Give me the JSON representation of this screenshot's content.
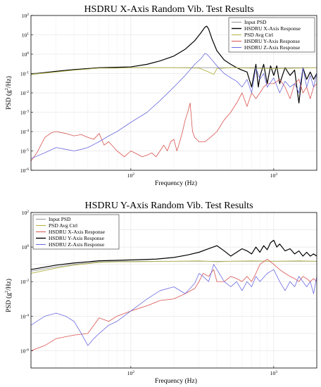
{
  "chart_data": [
    {
      "type": "line",
      "title": "HSDRU X-Axis Random Vib. Test Results",
      "xlabel": "Frequency (Hz)",
      "ylabel_prefix": "PSD (g",
      "ylabel_sup": "2",
      "ylabel_suffix": "/Hz)",
      "xscale": "log",
      "yscale": "log",
      "xlim": [
        20,
        2000
      ],
      "ylim": [
        1e-06,
        100
      ],
      "grid": true,
      "legend_position": "top-right",
      "x_ticks": [
        {
          "base": "10",
          "exp": "2",
          "value": 100
        },
        {
          "base": "10",
          "exp": "3",
          "value": 1000
        }
      ],
      "y_ticks": [
        {
          "base": "10",
          "exp": "2",
          "value": 100
        },
        {
          "base": "10",
          "exp": "1",
          "value": 10
        },
        {
          "base": "10",
          "exp": "0",
          "value": 1
        },
        {
          "base": "10",
          "exp": "-1",
          "value": 0.1
        },
        {
          "base": "10",
          "exp": "-2",
          "value": 0.01
        },
        {
          "base": "10",
          "exp": "-3",
          "value": 0.001
        },
        {
          "base": "10",
          "exp": "-4",
          "value": 0.0001
        },
        {
          "base": "10",
          "exp": "-5",
          "value": 1e-05
        },
        {
          "base": "10",
          "exp": "-6",
          "value": 1e-06
        }
      ],
      "series": [
        {
          "name": "Input PSD",
          "color": "#9a9a9a",
          "width": 0.9,
          "x": [
            20,
            30,
            40,
            50,
            60,
            80,
            100,
            200,
            300,
            400,
            500,
            700,
            1000,
            1500,
            2000
          ],
          "y": [
            0.1,
            0.13,
            0.16,
            0.18,
            0.2,
            0.2,
            0.2,
            0.2,
            0.2,
            0.2,
            0.2,
            0.2,
            0.2,
            0.2,
            0.2
          ]
        },
        {
          "name": "HSDRU X-Axis Response",
          "color": "#000000",
          "width": 1.2,
          "x": [
            20,
            30,
            40,
            50,
            60,
            80,
            100,
            130,
            160,
            200,
            240,
            280,
            310,
            330,
            340,
            350,
            370,
            400,
            450,
            500,
            550,
            600,
            650,
            700,
            720,
            750,
            780,
            800,
            850,
            900,
            950,
            1000,
            1050,
            1100,
            1200,
            1300,
            1400,
            1500,
            1600,
            1700,
            1800,
            1900,
            2000
          ],
          "y": [
            0.09,
            0.13,
            0.16,
            0.18,
            0.2,
            0.21,
            0.22,
            0.3,
            0.45,
            0.8,
            1.8,
            5,
            13,
            25,
            28,
            20,
            6,
            1.5,
            0.5,
            0.3,
            0.2,
            0.15,
            0.12,
            0.02,
            0.06,
            0.3,
            0.02,
            0.07,
            0.3,
            0.03,
            0.25,
            0.08,
            0.25,
            0.03,
            0.2,
            0.08,
            0.15,
            0.003,
            0.2,
            0.05,
            0.12,
            0.05,
            0.1
          ]
        },
        {
          "name": "PSD Avg Ctrl",
          "color": "#b5b54a",
          "width": 0.9,
          "x": [
            20,
            30,
            40,
            50,
            60,
            80,
            100,
            150,
            200,
            300,
            350,
            380,
            400,
            500,
            700,
            1000,
            1500,
            2000
          ],
          "y": [
            0.09,
            0.12,
            0.15,
            0.17,
            0.19,
            0.19,
            0.2,
            0.2,
            0.2,
            0.19,
            0.12,
            0.09,
            0.18,
            0.2,
            0.19,
            0.18,
            0.19,
            0.2
          ]
        },
        {
          "name": "HSDRU Y-Axis Response",
          "color": "#d9534f",
          "width": 0.8,
          "x": [
            20,
            22,
            25,
            28,
            30,
            35,
            40,
            45,
            50,
            55,
            60,
            65,
            70,
            80,
            90,
            100,
            110,
            120,
            130,
            140,
            150,
            160,
            170,
            180,
            190,
            200,
            210,
            220,
            230,
            240,
            250,
            260,
            270,
            280,
            300,
            330,
            360,
            400,
            450,
            500,
            550,
            600,
            650,
            700,
            750,
            800,
            850,
            900,
            1000,
            1100,
            1200,
            1300,
            1400,
            1500,
            1600,
            1700,
            1800,
            1900,
            2000
          ],
          "y": [
            3e-06,
            8e-06,
            5e-05,
            9e-05,
            0.0001,
            8e-05,
            6e-05,
            7e-05,
            5e-05,
            4e-05,
            8e-05,
            2e-05,
            3e-05,
            1e-05,
            5e-06,
            1e-05,
            7e-06,
            5e-06,
            6e-06,
            8e-06,
            5e-06,
            1e-05,
            2e-05,
            1e-05,
            3e-05,
            4e-05,
            1e-05,
            3e-05,
            0.0001,
            0.0004,
            0.001,
            0.003,
            0.0001,
            5e-05,
            3e-05,
            3e-05,
            5e-05,
            0.0001,
            0.0004,
            0.001,
            0.003,
            0.01,
            0.002,
            0.01,
            0.005,
            0.01,
            0.02,
            0.03,
            0.03,
            0.05,
            0.02,
            0.005,
            0.03,
            0.05,
            0.01,
            0.02,
            0.005,
            0.02,
            0.03
          ]
        },
        {
          "name": "HSDRU Z-Axis Response",
          "color": "#6a6adf",
          "width": 0.8,
          "x": [
            20,
            25,
            30,
            35,
            40,
            45,
            50,
            60,
            70,
            80,
            100,
            130,
            160,
            200,
            240,
            280,
            310,
            330,
            340,
            350,
            370,
            400,
            450,
            500,
            550,
            600,
            650,
            700,
            750,
            800,
            850,
            900,
            1000,
            1100,
            1200,
            1300,
            1400,
            1500,
            1600,
            1700,
            1800,
            1900,
            2000
          ],
          "y": [
            4e-06,
            8e-06,
            1.5e-05,
            1.2e-05,
            1e-05,
            1.2e-05,
            1.5e-05,
            3e-05,
            6e-05,
            0.0001,
            0.0003,
            0.001,
            0.004,
            0.02,
            0.08,
            0.3,
            0.6,
            1.1,
            1.0,
            0.8,
            0.5,
            0.25,
            0.1,
            0.06,
            0.04,
            0.02,
            0.05,
            0.01,
            0.2,
            0.05,
            0.1,
            0.02,
            0.06,
            0.01,
            0.04,
            0.02,
            0.03,
            0.01,
            0.2,
            0.02,
            0.08,
            0.02,
            0.1
          ]
        }
      ]
    },
    {
      "type": "line",
      "title": "HSDRU Y-Axis Random Vib. Test Results",
      "xlabel": "Frequency (Hz)",
      "ylabel_prefix": "PSD (g",
      "ylabel_sup": "2",
      "ylabel_suffix": "/Hz)",
      "xscale": "log",
      "yscale": "log",
      "xlim": [
        20,
        2000
      ],
      "ylim": [
        1e-07,
        100
      ],
      "grid": true,
      "legend_position": "top-left",
      "x_ticks": [
        {
          "base": "10",
          "exp": "2",
          "value": 100
        },
        {
          "base": "10",
          "exp": "3",
          "value": 1000
        }
      ],
      "y_ticks": [
        {
          "base": "10",
          "exp": "2",
          "value": 100
        },
        {
          "base": "10",
          "exp": "0",
          "value": 1
        },
        {
          "base": "10",
          "exp": "-2",
          "value": 0.01
        },
        {
          "base": "10",
          "exp": "-4",
          "value": 0.0001
        },
        {
          "base": "10",
          "exp": "-6",
          "value": 1e-06
        }
      ],
      "series": [
        {
          "name": "Input PSD",
          "color": "#9a9a9a",
          "width": 0.9,
          "x": [
            20,
            30,
            40,
            50,
            60,
            80,
            100,
            200,
            300,
            400,
            500,
            700,
            1000,
            1500,
            2000
          ],
          "y": [
            0.04,
            0.07,
            0.1,
            0.12,
            0.14,
            0.15,
            0.15,
            0.15,
            0.15,
            0.15,
            0.15,
            0.15,
            0.15,
            0.15,
            0.15
          ]
        },
        {
          "name": "PSD Avg Ctrl",
          "color": "#b5b54a",
          "width": 0.9,
          "x": [
            20,
            30,
            40,
            50,
            60,
            80,
            100,
            200,
            300,
            400,
            500,
            700,
            1000,
            1500,
            2000
          ],
          "y": [
            0.03,
            0.06,
            0.09,
            0.11,
            0.13,
            0.14,
            0.14,
            0.15,
            0.16,
            0.14,
            0.15,
            0.16,
            0.15,
            0.16,
            0.15
          ]
        },
        {
          "name": "HSDRU X-Axis Response",
          "color": "#d9534f",
          "width": 0.8,
          "x": [
            20,
            25,
            30,
            40,
            50,
            60,
            70,
            80,
            100,
            130,
            160,
            200,
            240,
            280,
            300,
            320,
            350,
            380,
            400,
            450,
            500,
            550,
            600,
            650,
            700,
            750,
            800,
            900,
            1000,
            1100,
            1200,
            1300,
            1400,
            1500,
            1600,
            1700,
            1800,
            1900,
            2000
          ],
          "y": [
            1e-06,
            2e-06,
            5e-06,
            8e-06,
            1e-05,
            8e-05,
            5e-05,
            0.0001,
            0.0002,
            0.0004,
            0.0008,
            0.001,
            0.002,
            0.004,
            0.01,
            0.03,
            0.02,
            0.05,
            0.01,
            0.01,
            0.02,
            0.015,
            0.01,
            0.02,
            0.01,
            0.03,
            0.1,
            0.2,
            0.1,
            0.05,
            0.03,
            0.02,
            0.015,
            0.01,
            0.02,
            0.015,
            0.01,
            0.015,
            0.01
          ]
        },
        {
          "name": "HSDRU Y-Axis Response",
          "color": "#000000",
          "width": 1.2,
          "x": [
            20,
            30,
            40,
            50,
            60,
            80,
            100,
            150,
            200,
            250,
            300,
            350,
            400,
            450,
            500,
            550,
            600,
            650,
            700,
            750,
            800,
            850,
            900,
            950,
            1000,
            1050,
            1100,
            1200,
            1300,
            1400,
            1500,
            1600,
            1700,
            1800,
            1900,
            2000
          ],
          "y": [
            0.05,
            0.09,
            0.12,
            0.14,
            0.16,
            0.17,
            0.18,
            0.2,
            0.25,
            0.35,
            0.5,
            0.8,
            1.2,
            0.6,
            0.3,
            0.5,
            0.8,
            0.6,
            0.4,
            1.0,
            0.5,
            1.2,
            0.7,
            1.8,
            2.5,
            1.0,
            1.5,
            0.6,
            0.8,
            0.4,
            0.6,
            0.3,
            0.5,
            0.3,
            0.4,
            0.3
          ]
        },
        {
          "name": "HSDRU Z-Axis Response",
          "color": "#6a6adf",
          "width": 0.8,
          "x": [
            20,
            25,
            30,
            35,
            40,
            45,
            50,
            55,
            60,
            70,
            80,
            100,
            130,
            160,
            200,
            240,
            280,
            300,
            320,
            350,
            380,
            400,
            450,
            500,
            550,
            600,
            650,
            700,
            750,
            800,
            900,
            1000,
            1100,
            1200,
            1300,
            1400,
            1500,
            1600,
            1700,
            1800,
            1900,
            2000
          ],
          "y": [
            3e-05,
            0.0001,
            0.00015,
            0.0001,
            5e-05,
            1e-05,
            2e-06,
            5e-06,
            1e-05,
            3e-05,
            5e-05,
            0.0002,
            0.001,
            0.003,
            0.005,
            0.002,
            0.008,
            0.03,
            0.02,
            0.01,
            0.1,
            0.05,
            0.01,
            0.005,
            0.01,
            0.003,
            0.01,
            0.005,
            0.02,
            0.01,
            0.03,
            0.05,
            0.01,
            0.003,
            0.01,
            0.005,
            0.02,
            0.01,
            0.005,
            0.01,
            0.002,
            0.02
          ]
        }
      ]
    }
  ]
}
